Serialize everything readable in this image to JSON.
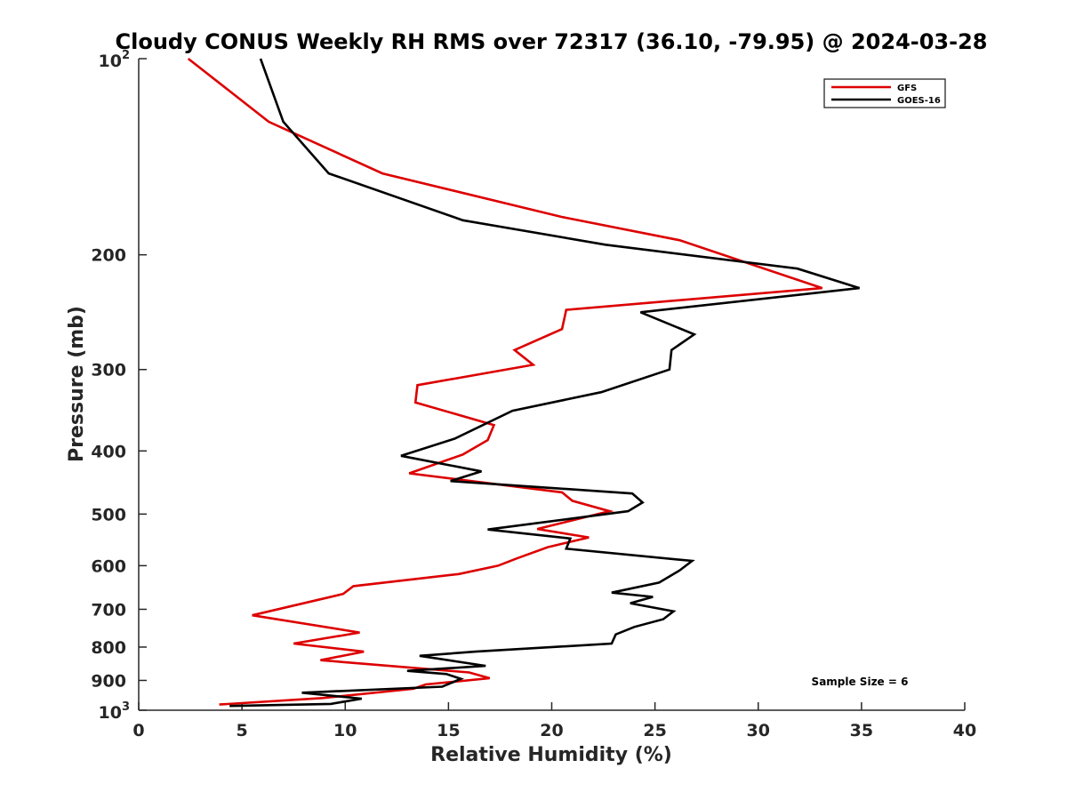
{
  "chart_data": {
    "type": "line",
    "title": "Cloudy CONUS Weekly RH RMS over 72317 (36.10, -79.95) @ 2024-03-28",
    "xlabel": "Relative Humidity (%)",
    "ylabel": "Pressure (mb)",
    "xlim": [
      0,
      40
    ],
    "ylim": [
      100,
      1000
    ],
    "y_scale": "log",
    "y_reversed": true,
    "grid": false,
    "legend_position": "top-right",
    "x_ticks": [
      "0",
      "5",
      "10",
      "15",
      "20",
      "25",
      "30",
      "35",
      "40"
    ],
    "y_ticks": [
      {
        "value": 200,
        "label": "200"
      },
      {
        "value": 300,
        "label": "300"
      },
      {
        "value": 400,
        "label": "400"
      },
      {
        "value": 500,
        "label": "500"
      },
      {
        "value": 600,
        "label": "600"
      },
      {
        "value": 700,
        "label": "700"
      },
      {
        "value": 800,
        "label": "800"
      },
      {
        "value": 900,
        "label": "900"
      }
    ],
    "y_end_labels": {
      "top": {
        "base": "10",
        "exp": "2"
      },
      "bottom": {
        "base": "10",
        "exp": "3"
      }
    },
    "annotation": "Sample Size = 6",
    "series": [
      {
        "name": "GFS",
        "color": "#dd0000",
        "points": [
          [
            2.4,
            100
          ],
          [
            6.3,
            125
          ],
          [
            11.8,
            150
          ],
          [
            20.5,
            175
          ],
          [
            26.2,
            190
          ],
          [
            33.1,
            225
          ],
          [
            20.7,
            243
          ],
          [
            20.5,
            260
          ],
          [
            18.2,
            280
          ],
          [
            19.1,
            295
          ],
          [
            13.5,
            317
          ],
          [
            13.4,
            337
          ],
          [
            17.2,
            365
          ],
          [
            16.9,
            385
          ],
          [
            15.7,
            405
          ],
          [
            13.1,
            433
          ],
          [
            20.5,
            463
          ],
          [
            21.0,
            477
          ],
          [
            22.8,
            495
          ],
          [
            19.3,
            527
          ],
          [
            21.8,
            543
          ],
          [
            19.8,
            562
          ],
          [
            18.3,
            585
          ],
          [
            17.4,
            600
          ],
          [
            15.5,
            618
          ],
          [
            10.4,
            645
          ],
          [
            9.9,
            663
          ],
          [
            5.5,
            715
          ],
          [
            10.7,
            760
          ],
          [
            7.5,
            790
          ],
          [
            10.9,
            813
          ],
          [
            8.8,
            838
          ],
          [
            16.0,
            875
          ],
          [
            17.0,
            893
          ],
          [
            13.9,
            913
          ],
          [
            13.3,
            927
          ],
          [
            8.9,
            958
          ],
          [
            3.9,
            980
          ]
        ]
      },
      {
        "name": "GOES-16",
        "color": "#000000",
        "points": [
          [
            5.9,
            100
          ],
          [
            7.0,
            125
          ],
          [
            9.2,
            150
          ],
          [
            15.7,
            177
          ],
          [
            22.6,
            193
          ],
          [
            31.9,
            210
          ],
          [
            34.9,
            225
          ],
          [
            24.3,
            245
          ],
          [
            26.9,
            265
          ],
          [
            25.8,
            280
          ],
          [
            25.7,
            300
          ],
          [
            22.4,
            325
          ],
          [
            18.1,
            347
          ],
          [
            15.3,
            383
          ],
          [
            12.7,
            407
          ],
          [
            16.6,
            430
          ],
          [
            15.1,
            445
          ],
          [
            23.9,
            465
          ],
          [
            24.4,
            480
          ],
          [
            23.7,
            495
          ],
          [
            16.9,
            528
          ],
          [
            20.9,
            545
          ],
          [
            20.7,
            565
          ],
          [
            26.8,
            590
          ],
          [
            26.2,
            610
          ],
          [
            25.2,
            637
          ],
          [
            22.9,
            660
          ],
          [
            24.9,
            670
          ],
          [
            23.8,
            685
          ],
          [
            25.9,
            705
          ],
          [
            25.4,
            725
          ],
          [
            24.0,
            745
          ],
          [
            23.1,
            765
          ],
          [
            22.9,
            790
          ],
          [
            16.3,
            813
          ],
          [
            13.6,
            825
          ],
          [
            16.8,
            855
          ],
          [
            13.0,
            870
          ],
          [
            14.9,
            880
          ],
          [
            15.6,
            895
          ],
          [
            14.7,
            920
          ],
          [
            7.9,
            940
          ],
          [
            10.8,
            960
          ],
          [
            9.3,
            978
          ],
          [
            4.4,
            985
          ]
        ]
      }
    ]
  }
}
